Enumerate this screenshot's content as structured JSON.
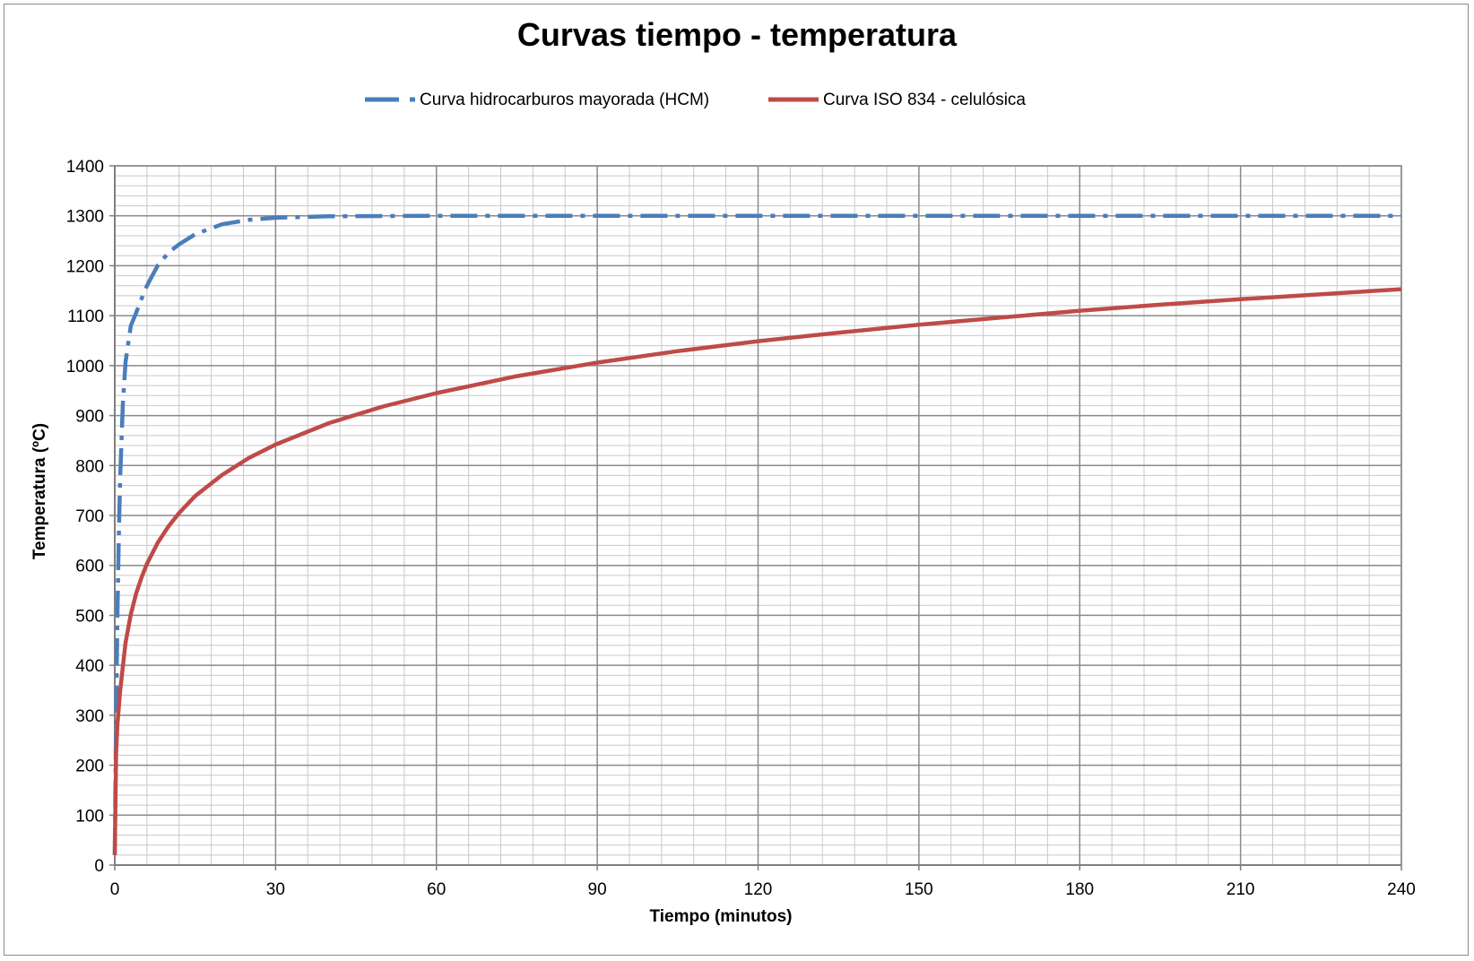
{
  "chart_data": {
    "type": "line",
    "title": "Curvas tiempo - temperatura",
    "xlabel": "Tiempo (minutos)",
    "ylabel": "Temperatura (ºC)",
    "xlim": [
      0,
      240
    ],
    "ylim": [
      0,
      1400
    ],
    "xticks": [
      0,
      30,
      60,
      90,
      120,
      150,
      180,
      210,
      240
    ],
    "yticks": [
      0,
      100,
      200,
      300,
      400,
      500,
      600,
      700,
      800,
      900,
      1000,
      1100,
      1200,
      1300,
      1400
    ],
    "x_minor_step": 6,
    "y_minor_step": 20,
    "grid": true,
    "legend_position": "top",
    "series": [
      {
        "name": "Curva hidrocarburos mayorada (HCM)",
        "color": "#4a7ebb",
        "style": "dashed",
        "x": [
          0,
          0.25,
          0.5,
          0.75,
          1,
          1.5,
          2,
          3,
          4,
          5,
          6,
          8,
          10,
          12,
          15,
          20,
          25,
          30,
          40,
          60,
          90,
          120,
          150,
          180,
          210,
          240
        ],
        "y": [
          20,
          299,
          505,
          659,
          774,
          923,
          1007,
          1080,
          1106,
          1134,
          1160,
          1200,
          1226,
          1243,
          1263,
          1283,
          1292,
          1296,
          1299,
          1300,
          1300,
          1300,
          1300,
          1300,
          1300,
          1300
        ]
      },
      {
        "name": "Curva ISO 834 - celulósica",
        "color": "#be4b48",
        "style": "solid",
        "x": [
          0,
          0.25,
          0.5,
          1,
          2,
          3,
          4,
          5,
          6,
          8,
          10,
          12,
          15,
          20,
          25,
          30,
          40,
          50,
          60,
          75,
          90,
          105,
          120,
          135,
          150,
          165,
          180,
          195,
          210,
          225,
          240
        ],
        "y": [
          20,
          225,
          283,
          349,
          445,
          502,
          544,
          576,
          603,
          645,
          678,
          705,
          739,
          781,
          815,
          842,
          885,
          918,
          945,
          979,
          1006,
          1029,
          1049,
          1066,
          1082,
          1096,
          1110,
          1122,
          1133,
          1143,
          1153
        ]
      }
    ]
  }
}
